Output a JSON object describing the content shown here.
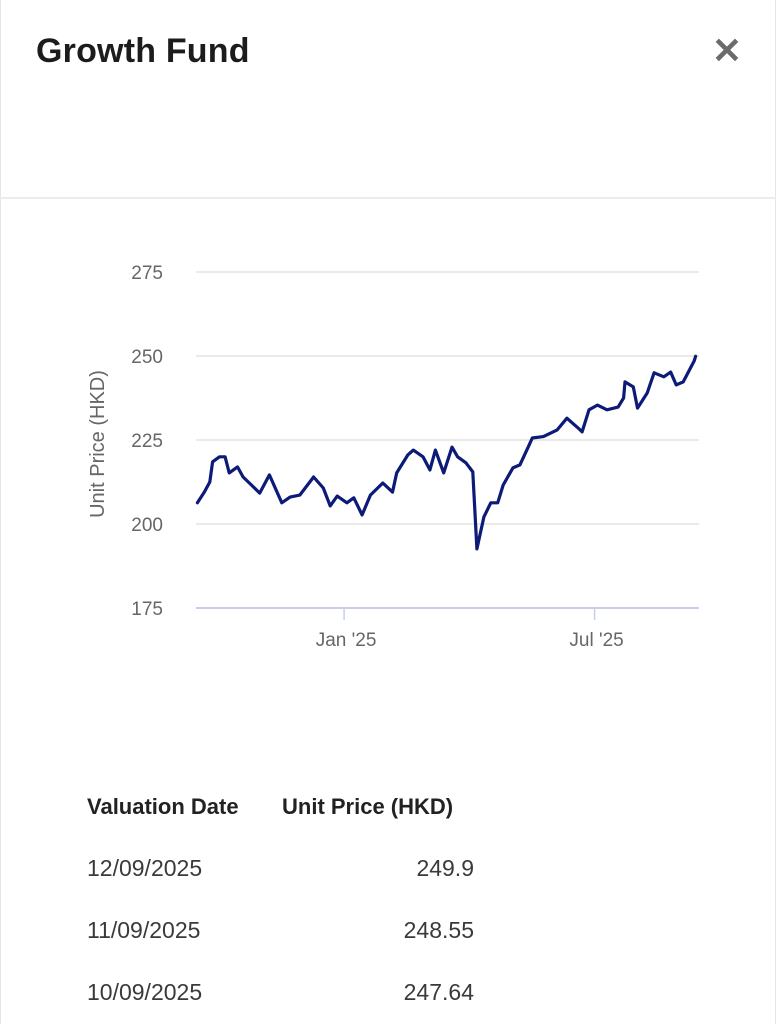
{
  "header": {
    "title": "Growth Fund",
    "close_icon": "close-icon"
  },
  "chart_data": {
    "type": "line",
    "title": "",
    "xlabel": "",
    "ylabel": "Unit Price (HKD)",
    "x_units": "days since 2025-01-01",
    "xlim": [
      -107,
      255
    ],
    "ylim": [
      175,
      275
    ],
    "yticks": [
      175,
      200,
      225,
      250,
      275
    ],
    "xticks": [
      {
        "value": 0,
        "label": "Jan '25"
      },
      {
        "value": 181,
        "label": "Jul '25"
      }
    ],
    "grid": true,
    "line_color": "#0c1a78",
    "series": [
      {
        "name": "Unit Price (HKD)",
        "x": [
          -106,
          -101,
          -97,
          -95,
          -90,
          -86,
          -83,
          -77,
          -73,
          -67,
          -61,
          -54,
          -45,
          -39,
          -32,
          -22,
          -15,
          -10,
          -5,
          2,
          7,
          13,
          19,
          28,
          35,
          38,
          46,
          50,
          57,
          62,
          66,
          72,
          78,
          82,
          88,
          93,
          96,
          101,
          106,
          111,
          115,
          122,
          127,
          133,
          136,
          144,
          154,
          161,
          169,
          172,
          177,
          183,
          190,
          198,
          202,
          203,
          209,
          212,
          219,
          224,
          231,
          236,
          240,
          245,
          253,
          254
        ],
        "y": [
          206.3,
          209.5,
          212.5,
          218.5,
          220,
          220,
          215.2,
          217,
          214,
          211.6,
          209.2,
          214.6,
          206.3,
          208,
          208.6,
          214,
          210.7,
          205.4,
          208.3,
          206.3,
          207.8,
          202.7,
          208.6,
          212.2,
          209.5,
          215.2,
          220.5,
          222,
          220,
          216.1,
          222,
          215.2,
          222.9,
          220,
          218.2,
          215.5,
          192.6,
          202.1,
          206.3,
          206.3,
          211.6,
          216.7,
          217.6,
          222.9,
          225.6,
          226,
          228,
          231.5,
          228.6,
          227.4,
          234,
          235.4,
          234,
          234.8,
          237.5,
          242.3,
          240.8,
          234.5,
          239,
          245,
          243.8,
          245.2,
          241.4,
          242.3,
          248.55,
          249.9
        ]
      }
    ]
  },
  "table": {
    "headers": [
      "Valuation Date",
      "Unit Price (HKD)"
    ],
    "rows": [
      {
        "date": "12/09/2025",
        "price": "249.9"
      },
      {
        "date": "11/09/2025",
        "price": "248.55"
      },
      {
        "date": "10/09/2025",
        "price": "247.64"
      }
    ]
  }
}
